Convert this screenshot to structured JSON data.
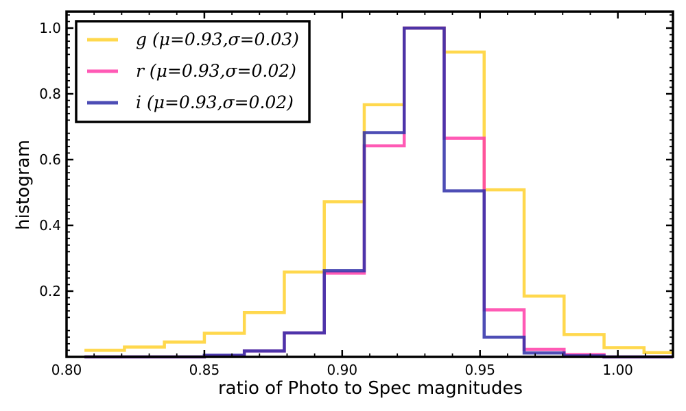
{
  "chart_data": {
    "type": "histogram",
    "title": "",
    "xlabel": "ratio of Photo to Spec magnitudes",
    "ylabel": "histogram",
    "xlim": [
      0.8,
      1.02
    ],
    "ylim": [
      0.0,
      1.05
    ],
    "xticks": [
      0.8,
      0.85,
      0.9,
      0.95,
      1.0
    ],
    "xtick_labels": [
      "0.80",
      "0.85",
      "0.90",
      "0.95",
      "1.00"
    ],
    "yticks": [
      0.2,
      0.4,
      0.6,
      0.8,
      1.0
    ],
    "ytick_labels": [
      "0.2",
      "0.4",
      "0.6",
      "0.8",
      "1.0"
    ],
    "legend_position": "upper-left",
    "bin_edges": [
      0.8065,
      0.821,
      0.8355,
      0.85,
      0.8645,
      0.879,
      0.8935,
      0.908,
      0.9225,
      0.937,
      0.9515,
      0.966,
      0.9805,
      0.995,
      1.0095,
      1.024
    ],
    "series": [
      {
        "name": "g",
        "label": "g (μ=0.93,σ=0.03)",
        "color": "#FFD12E",
        "values": [
          0.02,
          0.03,
          0.045,
          0.072,
          0.135,
          0.258,
          0.472,
          0.767,
          1.0,
          0.927,
          0.508,
          0.185,
          0.068,
          0.028,
          0.013
        ]
      },
      {
        "name": "r",
        "label": "r (μ=0.93,σ=0.02)",
        "color": "#FF3DA8",
        "values": [
          0.0,
          0.0,
          0.0,
          0.003,
          0.018,
          0.073,
          0.255,
          0.642,
          1.0,
          0.665,
          0.143,
          0.023,
          0.007,
          0.0,
          0.0
        ]
      },
      {
        "name": "i",
        "label": "i (μ=0.93,σ=0.02)",
        "color": "#2E2EA8",
        "values": [
          0.0,
          0.0,
          0.0,
          0.005,
          0.018,
          0.073,
          0.262,
          0.682,
          1.0,
          0.505,
          0.06,
          0.012,
          0.003,
          0.0,
          0.0
        ]
      }
    ]
  }
}
